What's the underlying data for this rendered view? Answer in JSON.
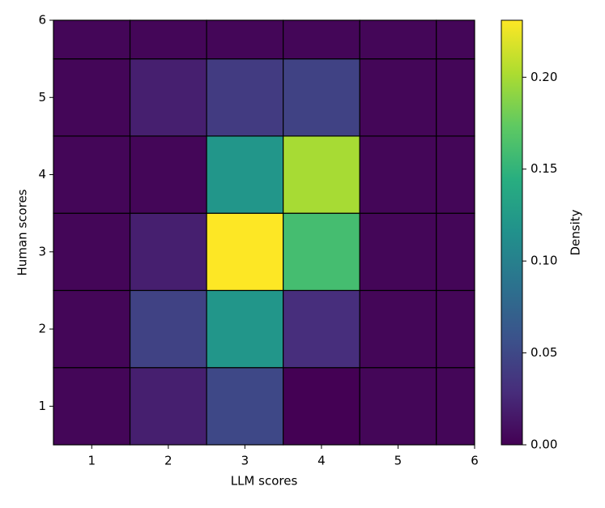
{
  "chart_data": {
    "type": "heatmap",
    "xlabel": "LLM scores",
    "ylabel": "Human scores",
    "xbins": [
      0.5,
      1.5,
      2.5,
      3.5,
      4.5,
      5.5,
      6
    ],
    "ybins": [
      0.5,
      1.5,
      2.5,
      3.5,
      4.5,
      5.5,
      6
    ],
    "values": [
      [
        0.003,
        0.02,
        0.05,
        0.0,
        0.003,
        0.003
      ],
      [
        0.003,
        0.045,
        0.12,
        0.03,
        0.003,
        0.003
      ],
      [
        0.003,
        0.02,
        0.231,
        0.16,
        0.003,
        0.003
      ],
      [
        0.003,
        0.003,
        0.12,
        0.2,
        0.003,
        0.003
      ],
      [
        0.003,
        0.02,
        0.04,
        0.045,
        0.003,
        0.003
      ],
      [
        0.003,
        0.003,
        0.003,
        0.003,
        0.003,
        0.003
      ]
    ],
    "xlim": [
      0.5,
      6
    ],
    "ylim": [
      0.5,
      6
    ],
    "xticks": [
      1,
      2,
      3,
      4,
      5,
      6
    ],
    "yticks": [
      1,
      2,
      3,
      4,
      5,
      6
    ],
    "colormap": "viridis",
    "colorbar": {
      "label": "Density",
      "lim": [
        0,
        0.231
      ],
      "ticks": [
        {
          "value": 0,
          "label": "0.00"
        },
        0.05,
        {
          "value": 0.1,
          "label": "0.10"
        },
        0.15,
        {
          "value": 0.2,
          "label": "0.20"
        }
      ]
    }
  }
}
